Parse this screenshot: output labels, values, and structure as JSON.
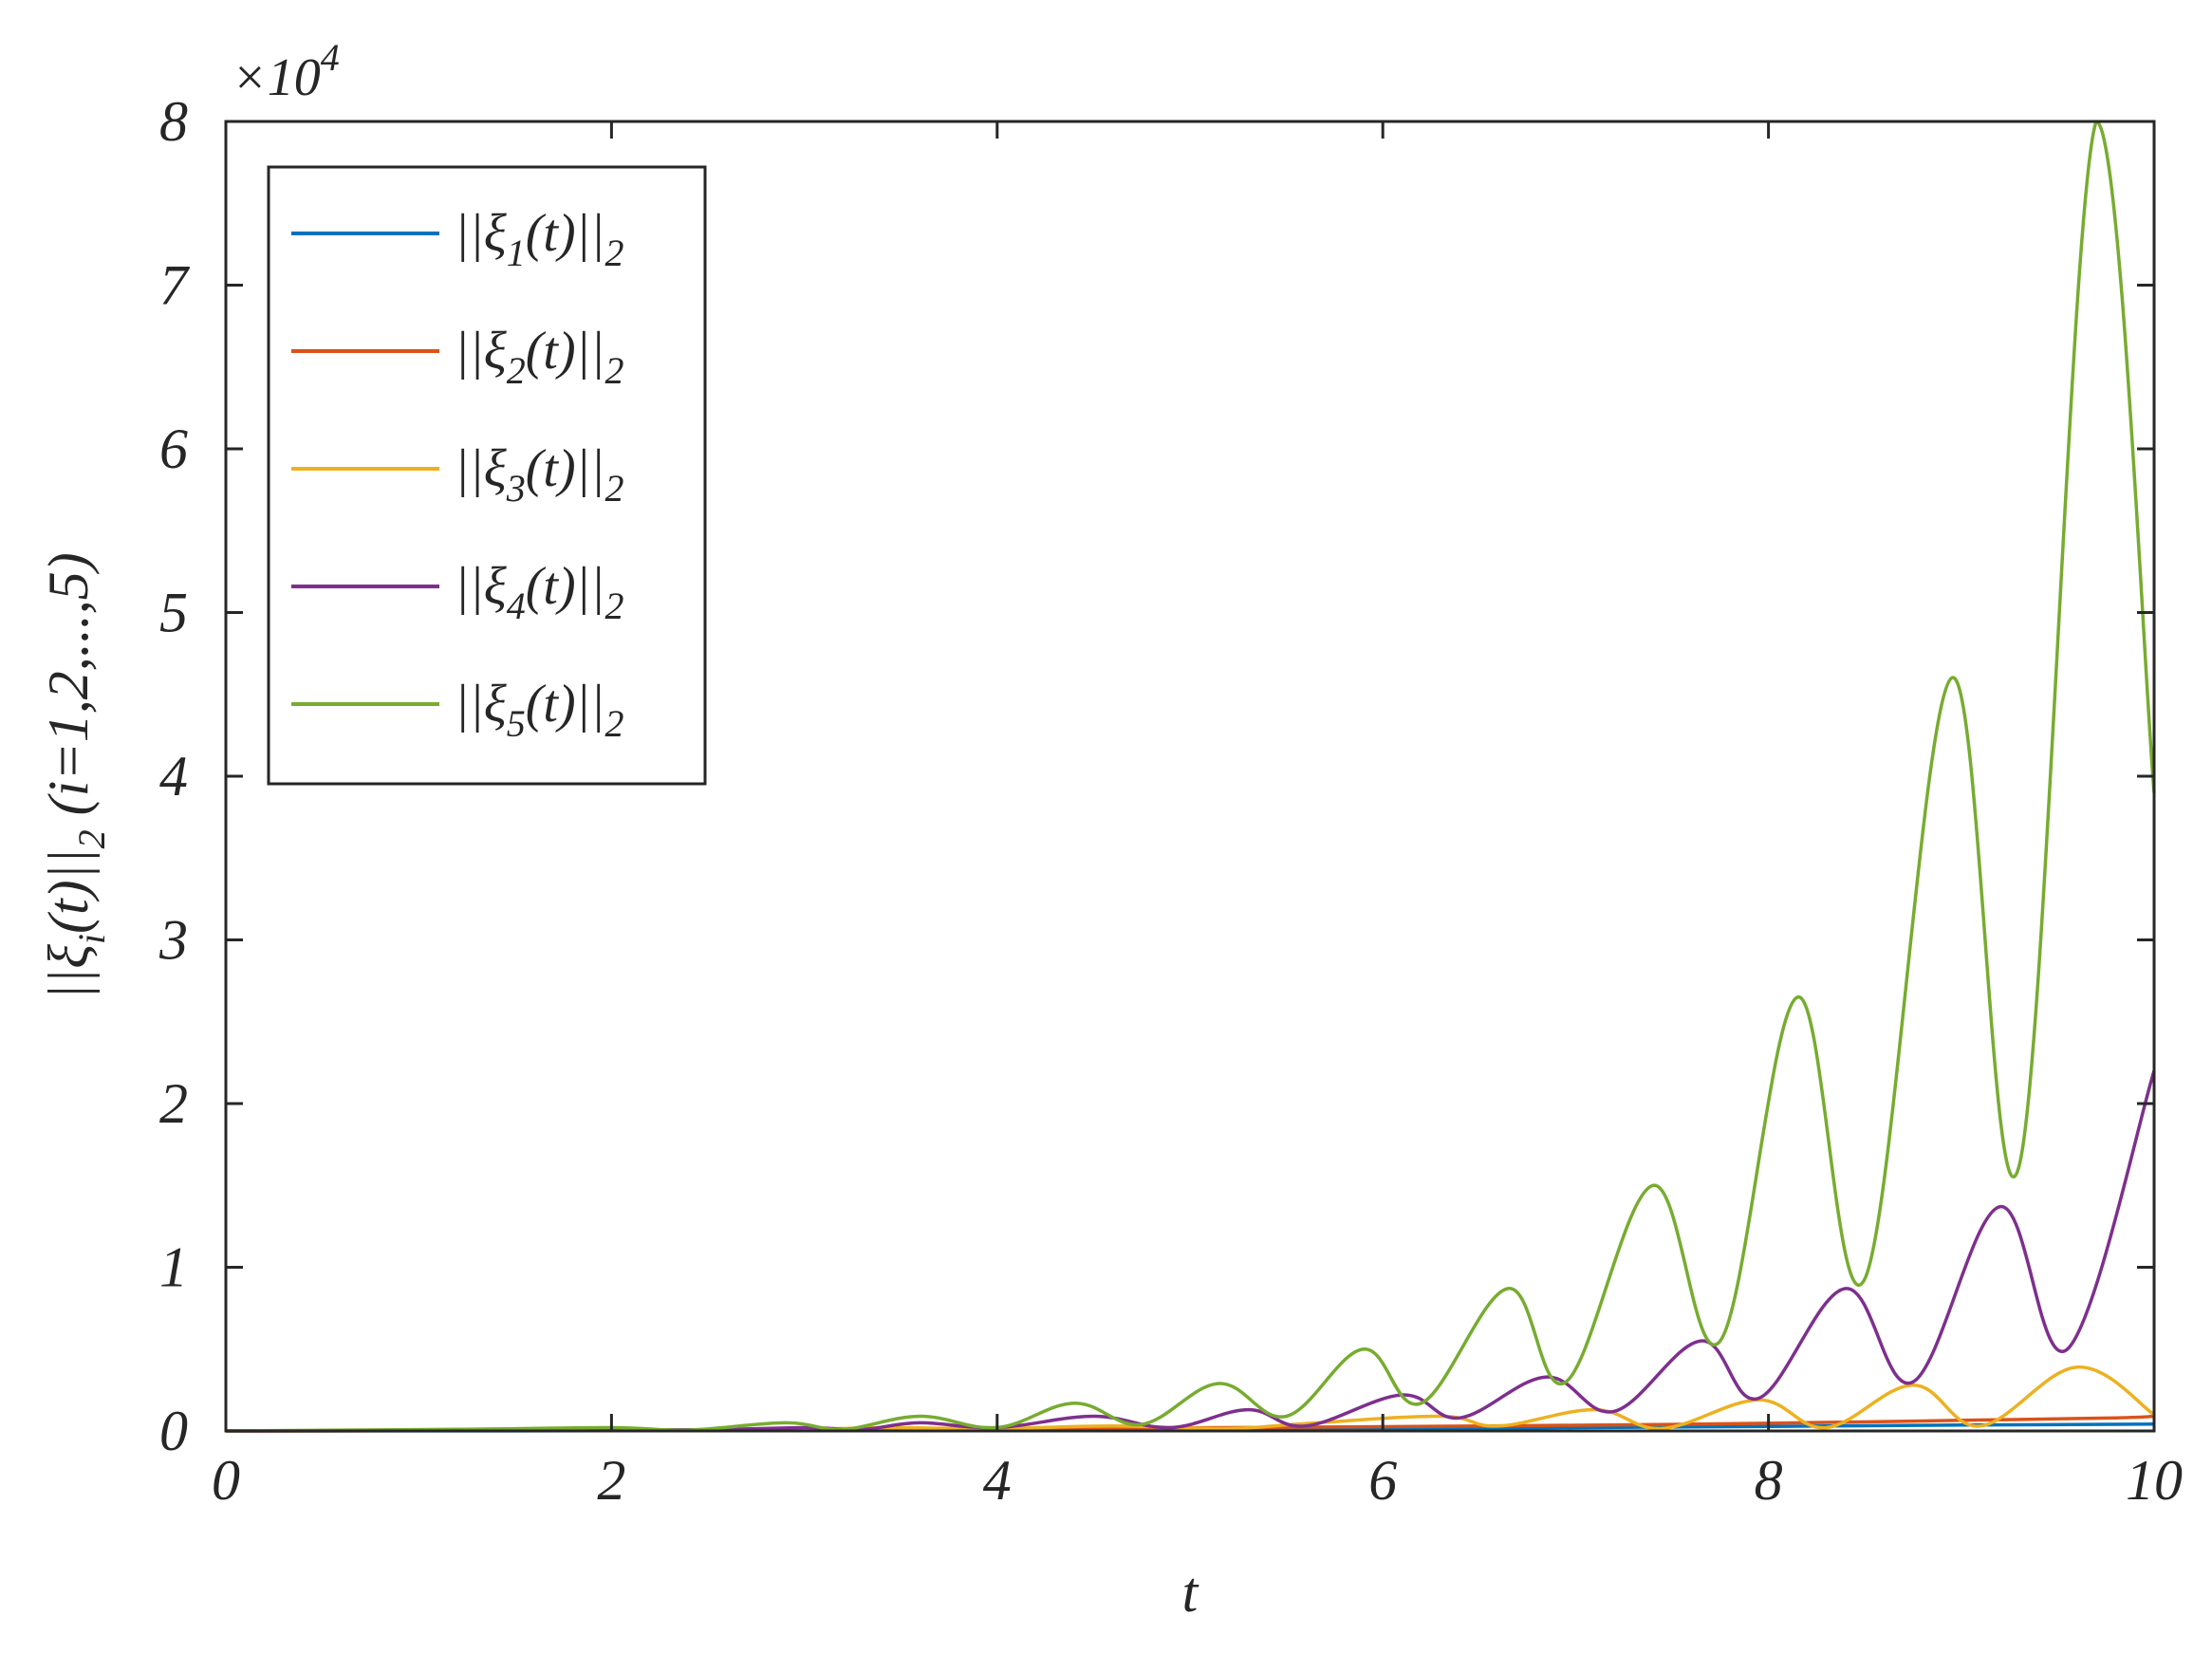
{
  "chart_data": {
    "type": "line",
    "xlabel": "t",
    "ylabel": "||ξi(t)||2 (i=1,2,...,5)",
    "ylabel_parts": {
      "pre": "||ξ",
      "sub1": "i",
      "mid": "(t)||",
      "sub2": "2",
      "post": " (i=1,2,...,5)"
    },
    "exponent_label": "×10",
    "exponent_power": "4",
    "xlim": [
      0,
      10
    ],
    "ylim": [
      0,
      80000
    ],
    "x_ticks": [
      "0",
      "2",
      "4",
      "6",
      "8",
      "10"
    ],
    "y_ticks": [
      "0",
      "1",
      "2",
      "3",
      "4",
      "5",
      "6",
      "7",
      "8"
    ],
    "legend_position": "top-left",
    "grid": false,
    "series": [
      {
        "name": "||ξ1(t)||2",
        "label_parts": {
          "pre": "||ξ",
          "sub1": "1",
          "mid": "(t)||",
          "sub2": "2"
        },
        "color": "#0072BD",
        "x": [
          0,
          1,
          2,
          3,
          4,
          5,
          6,
          7,
          8,
          9,
          10
        ],
        "y": [
          0,
          5,
          10,
          20,
          40,
          80,
          130,
          200,
          280,
          360,
          420
        ]
      },
      {
        "name": "||ξ2(t)||2",
        "label_parts": {
          "pre": "||ξ",
          "sub1": "2",
          "mid": "(t)||",
          "sub2": "2"
        },
        "color": "#D95319",
        "x": [
          0,
          1,
          2,
          3,
          3.7,
          4.4,
          5.2,
          6.0,
          6.7,
          7.5,
          8.3,
          9.0,
          9.8,
          10
        ],
        "y": [
          0,
          10,
          30,
          60,
          100,
          150,
          200,
          260,
          320,
          400,
          520,
          650,
          800,
          900
        ]
      },
      {
        "name": "||ξ3(t)||2",
        "label_parts": {
          "pre": "||ξ",
          "sub1": "3",
          "mid": "(t)||",
          "sub2": "2"
        },
        "color": "#EDB120",
        "x": [
          0,
          2,
          3,
          3.4,
          4.0,
          4.6,
          5.2,
          5.6,
          6.3,
          6.6,
          7.1,
          7.45,
          7.95,
          8.3,
          8.75,
          9.1,
          9.6,
          10
        ],
        "y": [
          0,
          50,
          100,
          200,
          150,
          300,
          150,
          450,
          900,
          300,
          1300,
          150,
          1900,
          200,
          2800,
          300,
          3900,
          1000
        ]
      },
      {
        "name": "||ξ4(t)||2",
        "label_parts": {
          "pre": "||ξ",
          "sub1": "4",
          "mid": "(t)||",
          "sub2": "2"
        },
        "color": "#7E2F8E",
        "x": [
          0,
          1.5,
          2.5,
          3.0,
          3.3,
          3.6,
          4.0,
          4.5,
          4.9,
          5.3,
          5.6,
          6.1,
          6.4,
          6.85,
          7.2,
          7.65,
          7.95,
          8.4,
          8.75,
          9.2,
          9.55,
          10
        ],
        "y": [
          0,
          30,
          80,
          200,
          100,
          500,
          200,
          900,
          200,
          1300,
          300,
          2200,
          800,
          3300,
          1200,
          5500,
          2000,
          8700,
          3000,
          13700,
          5000,
          22000
        ]
      },
      {
        "name": "||ξ5(t)||2",
        "label_parts": {
          "pre": "||ξ",
          "sub1": "5",
          "mid": "(t)||",
          "sub2": "2"
        },
        "color": "#77AC30",
        "x": [
          0,
          1.2,
          2.0,
          2.4,
          2.9,
          3.2,
          3.6,
          4.0,
          4.4,
          4.75,
          5.15,
          5.5,
          5.9,
          6.2,
          6.65,
          6.95,
          7.4,
          7.75,
          8.15,
          8.5,
          8.95,
          9.3,
          9.7,
          10
        ],
        "y": [
          0,
          100,
          200,
          50,
          500,
          100,
          900,
          200,
          1700,
          400,
          2900,
          900,
          5000,
          1700,
          8700,
          3000,
          15000,
          5500,
          26500,
          9300,
          46000,
          16200,
          80000,
          39000
        ]
      }
    ]
  }
}
